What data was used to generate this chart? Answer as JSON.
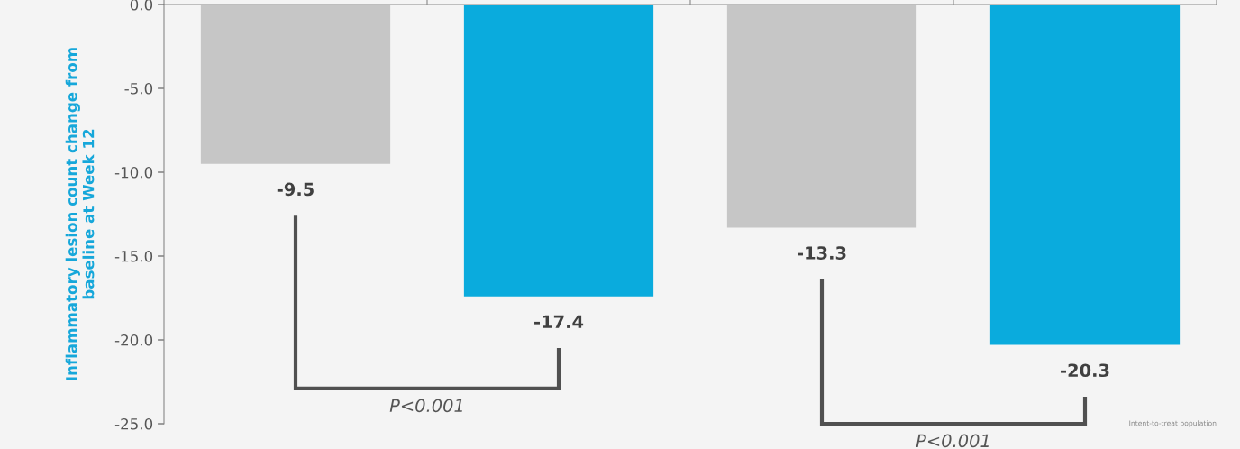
{
  "chart_data": {
    "type": "bar",
    "ylabel": "Inflammatory lesion count change from\nbaseline at Week 12",
    "categories": [
      null,
      null,
      null,
      null
    ],
    "values": [
      -9.5,
      -17.4,
      -13.3,
      -20.3
    ],
    "colors": [
      "#c6c6c6",
      "#0aabdd",
      "#c6c6c6",
      "#0aabdd"
    ],
    "data_labels": true,
    "ylim": [
      -25,
      0
    ],
    "yticks": [
      {
        "value": 0,
        "label": "0.0"
      },
      {
        "value": -5,
        "label": "-5.0"
      },
      {
        "value": -10,
        "label": "-10.0"
      },
      {
        "value": -15,
        "label": "-15.0"
      },
      {
        "value": -20,
        "label": "-20.0"
      },
      {
        "value": -25,
        "label": "-25.0"
      }
    ],
    "tick_labels": "y",
    "grid": false,
    "annotations": [
      "P<0.001",
      "P<0.001",
      "Intent-to-treat population"
    ]
  }
}
